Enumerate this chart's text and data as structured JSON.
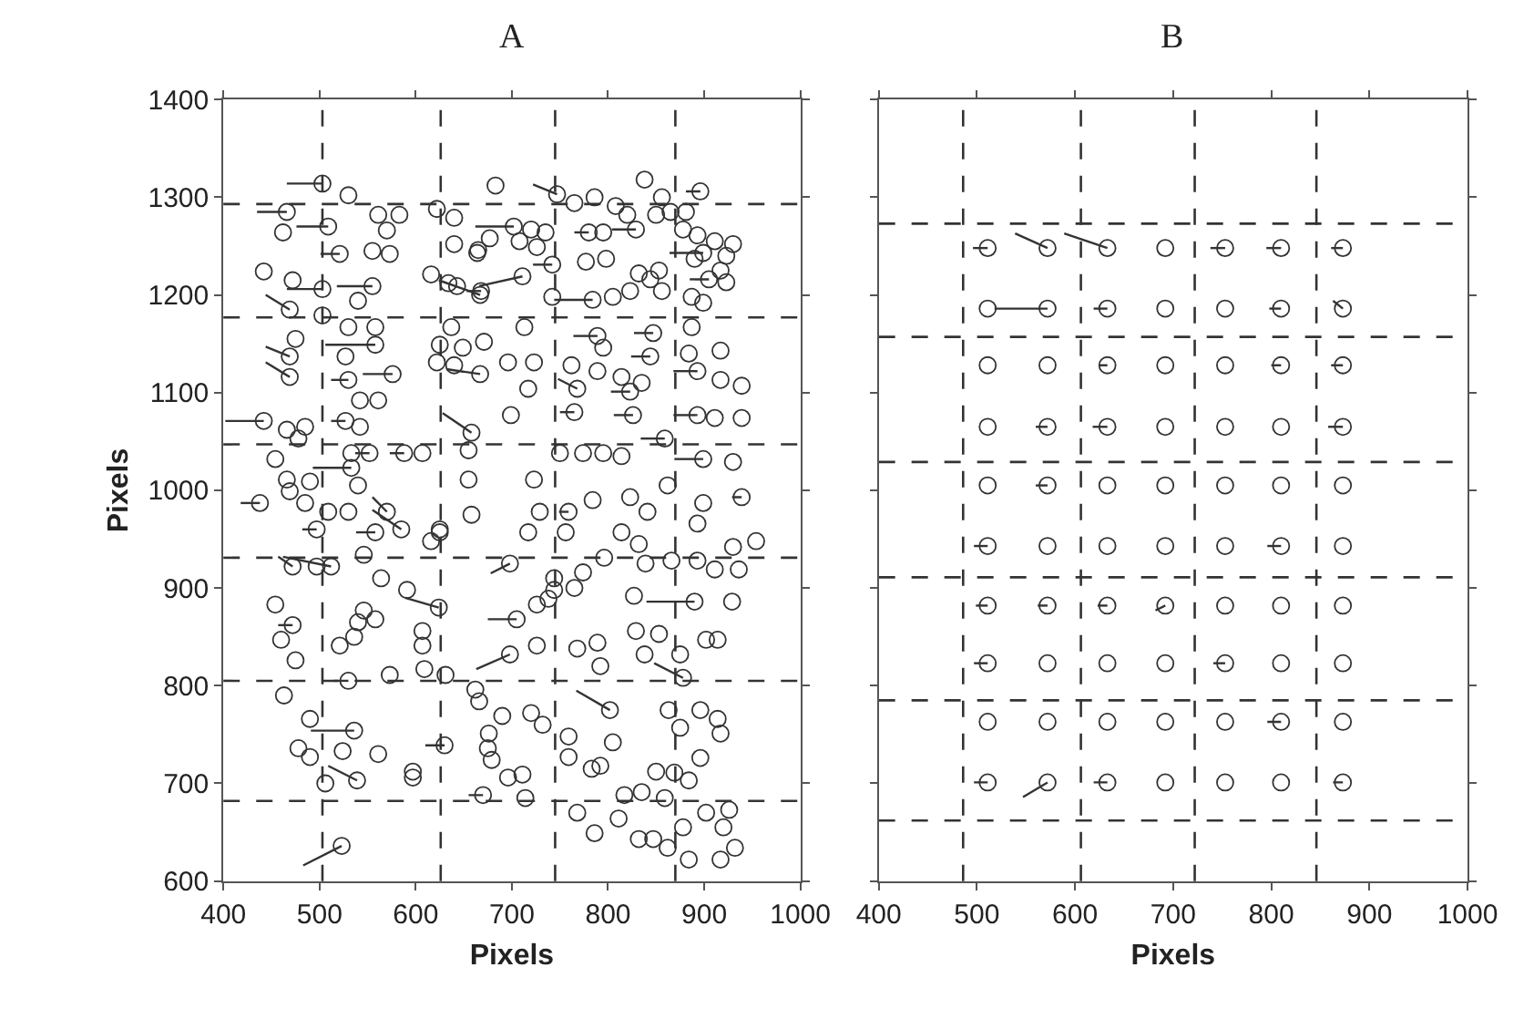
{
  "chart_data": [
    {
      "type": "scatter",
      "title": "A",
      "xlabel": "Pixels",
      "ylabel": "Pixels",
      "xlim": [
        400,
        1000
      ],
      "ylim": [
        600,
        1400
      ],
      "xticks": [
        400,
        500,
        600,
        700,
        800,
        900,
        1000
      ],
      "yticks": [
        600,
        700,
        800,
        900,
        1000,
        1100,
        1200,
        1300,
        1400
      ],
      "grid": false,
      "marker": "circle",
      "ref_lines": [
        {
          "axis": "x",
          "value": 503,
          "color": "#333333",
          "line_style": "dashed"
        },
        {
          "axis": "x",
          "value": 626,
          "color": "#333333",
          "line_style": "dashed"
        },
        {
          "axis": "x",
          "value": 745,
          "color": "#333333",
          "line_style": "dashed"
        },
        {
          "axis": "x",
          "value": 870,
          "color": "#333333",
          "line_style": "dashed"
        },
        {
          "axis": "y",
          "value": 1293,
          "color": "#333333",
          "line_style": "dashed"
        },
        {
          "axis": "y",
          "value": 1177,
          "color": "#333333",
          "line_style": "dashed"
        },
        {
          "axis": "y",
          "value": 1047,
          "color": "#333333",
          "line_style": "dashed"
        },
        {
          "axis": "y",
          "value": 931,
          "color": "#333333",
          "line_style": "dashed"
        },
        {
          "axis": "y",
          "value": 805,
          "color": "#333333",
          "line_style": "dashed"
        },
        {
          "axis": "y",
          "value": 682,
          "color": "#333333",
          "line_style": "dashed"
        }
      ],
      "series": [
        {
          "type": "scatter",
          "color": "#333333",
          "x": [
            503,
            530,
            466,
            462,
            509,
            561,
            583,
            570,
            521,
            555,
            573,
            442,
            472,
            503,
            555,
            540,
            469,
            503,
            530,
            558,
            475,
            558,
            527,
            469,
            469,
            530,
            576,
            542,
            561,
            442,
            466,
            485,
            527,
            542,
            454,
            478,
            533,
            533,
            552,
            588,
            607,
            466,
            490,
            540,
            438,
            469,
            485,
            509,
            530,
            570,
            585,
            558,
            497,
            625,
            616,
            622,
            640,
            640,
            664,
            616,
            634,
            643,
            667,
            637,
            625,
            649,
            622,
            640,
            667,
            658,
            655,
            655,
            658,
            625,
            683,
            747,
            765,
            786,
            808,
            838,
            856,
            896,
            820,
            850,
            865,
            881,
            702,
            720,
            735,
            677,
            665,
            708,
            726,
            780,
            795,
            829,
            878,
            893,
            911,
            930,
            899,
            923,
            777,
            798,
            890,
            917,
            711,
            742,
            832,
            853,
            844,
            905,
            923,
            668,
            742,
            784,
            805,
            823,
            856,
            887,
            899,
            713,
            789,
            847,
            887,
            795,
            844,
            884,
            917,
            671,
            696,
            723,
            762,
            789,
            814,
            835,
            717,
            768,
            823,
            893,
            917,
            939,
            699,
            765,
            826,
            893,
            911,
            939,
            859,
            750,
            774,
            795,
            814,
            899,
            930,
            723,
            862,
            823,
            841,
            784,
            899,
            939,
            729,
            759,
            756,
            814,
            832,
            893,
            954,
            930,
            717,
            472,
            497,
            512,
            546,
            564,
            591,
            624,
            454,
            472,
            460,
            475,
            546,
            540,
            558,
            536,
            521,
            607,
            607,
            530,
            573,
            609,
            631,
            662,
            463,
            490,
            536,
            478,
            490,
            524,
            561,
            539,
            506,
            597,
            597,
            630,
            676,
            679,
            670,
            523,
            698,
            744,
            744,
            765,
            774,
            726,
            705,
            738,
            796,
            839,
            866,
            893,
            911,
            936,
            827,
            890,
            929,
            698,
            726,
            768,
            789,
            792,
            829,
            838,
            853,
            875,
            878,
            902,
            914,
            666,
            690,
            720,
            732,
            759,
            802,
            805,
            863,
            875,
            896,
            914,
            917,
            896,
            869,
            675,
            696,
            711,
            714,
            759,
            783,
            792,
            817,
            835,
            850,
            859,
            884,
            768,
            786,
            811,
            832,
            847,
            862,
            878,
            884,
            917,
            920,
            932,
            902,
            926
          ],
          "values": [
            1314,
            1302,
            1285,
            1264,
            1270,
            1282,
            1282,
            1266,
            1242,
            1245,
            1242,
            1224,
            1215,
            1206,
            1209,
            1194,
            1185,
            1179,
            1167,
            1167,
            1155,
            1149,
            1137,
            1137,
            1116,
            1113,
            1119,
            1092,
            1092,
            1071,
            1062,
            1065,
            1071,
            1065,
            1032,
            1053,
            1038,
            1023,
            1038,
            1038,
            1038,
            1011,
            1009,
            1005,
            987,
            999,
            987,
            978,
            978,
            978,
            960,
            957,
            960,
            960,
            948,
            1288,
            1279,
            1252,
            1243,
            1221,
            1212,
            1209,
            1200,
            1167,
            1149,
            1146,
            1131,
            1128,
            1119,
            1059,
            1041,
            1011,
            975,
            957,
            1312,
            1303,
            1294,
            1300,
            1291,
            1318,
            1300,
            1306,
            1282,
            1282,
            1285,
            1285,
            1270,
            1267,
            1264,
            1258,
            1246,
            1255,
            1249,
            1264,
            1264,
            1267,
            1267,
            1261,
            1255,
            1252,
            1243,
            1240,
            1234,
            1237,
            1237,
            1225,
            1219,
            1231,
            1222,
            1225,
            1216,
            1216,
            1213,
            1204,
            1198,
            1195,
            1198,
            1204,
            1204,
            1198,
            1192,
            1167,
            1158,
            1161,
            1167,
            1146,
            1137,
            1140,
            1143,
            1152,
            1131,
            1131,
            1128,
            1122,
            1116,
            1110,
            1104,
            1104,
            1101,
            1122,
            1113,
            1107,
            1077,
            1080,
            1077,
            1077,
            1074,
            1074,
            1053,
            1038,
            1038,
            1038,
            1035,
            1032,
            1029,
            1011,
            1005,
            993,
            978,
            990,
            987,
            993,
            978,
            978,
            957,
            957,
            945,
            966,
            948,
            942,
            957,
            922,
            922,
            922,
            934,
            910,
            898,
            880,
            883,
            862,
            847,
            826,
            877,
            865,
            868,
            850,
            841,
            856,
            841,
            805,
            811,
            817,
            811,
            796,
            790,
            766,
            754,
            736,
            727,
            733,
            730,
            703,
            700,
            712,
            706,
            739,
            751,
            724,
            688,
            636,
            925,
            910,
            898,
            900,
            916,
            883,
            868,
            889,
            931,
            925,
            928,
            928,
            919,
            919,
            892,
            886,
            886,
            832,
            841,
            838,
            844,
            820,
            856,
            832,
            853,
            832,
            808,
            847,
            847,
            784,
            769,
            772,
            760,
            748,
            775,
            742,
            775,
            757,
            775,
            766,
            751,
            726,
            711,
            736,
            706,
            709,
            685,
            727,
            715,
            718,
            688,
            691,
            712,
            685,
            703,
            670,
            649,
            664,
            643,
            643,
            634,
            655,
            622,
            622,
            655,
            634,
            670,
            673
          ]
        },
        {
          "type": "line",
          "color": "#333333",
          "marker": "none",
          "x": [
            503,
            466
          ],
          "values": [
            1314,
            1314
          ]
        },
        {
          "type": "line",
          "color": "#333333",
          "marker": "none",
          "x": [
            466,
            435
          ],
          "values": [
            1285,
            1285
          ]
        },
        {
          "type": "line",
          "color": "#333333",
          "marker": "none",
          "x": [
            509,
            476
          ],
          "values": [
            1270,
            1270
          ]
        },
        {
          "type": "line",
          "color": "#333333",
          "marker": "none",
          "x": [
            521,
            501
          ],
          "values": [
            1242,
            1242
          ]
        },
        {
          "type": "line",
          "color": "#333333",
          "marker": "none",
          "x": [
            503,
            466
          ],
          "values": [
            1206,
            1206
          ]
        },
        {
          "type": "line",
          "color": "#333333",
          "marker": "none",
          "x": [
            555,
            518
          ],
          "values": [
            1209,
            1209
          ]
        },
        {
          "type": "line",
          "color": "#333333",
          "marker": "none",
          "x": [
            469,
            444
          ],
          "values": [
            1185,
            1200
          ]
        },
        {
          "type": "line",
          "color": "#333333",
          "marker": "none",
          "x": [
            558,
            506
          ],
          "values": [
            1149,
            1149
          ]
        },
        {
          "type": "line",
          "color": "#333333",
          "marker": "none",
          "x": [
            469,
            444
          ],
          "values": [
            1137,
            1147
          ]
        },
        {
          "type": "line",
          "color": "#333333",
          "marker": "none",
          "x": [
            469,
            444
          ],
          "values": [
            1116,
            1131
          ]
        },
        {
          "type": "line",
          "color": "#333333",
          "marker": "none",
          "x": [
            530,
            512
          ],
          "values": [
            1113,
            1113
          ]
        },
        {
          "type": "line",
          "color": "#333333",
          "marker": "none",
          "x": [
            576,
            545
          ],
          "values": [
            1119,
            1119
          ]
        },
        {
          "type": "line",
          "color": "#333333",
          "marker": "none",
          "x": [
            442,
            402
          ],
          "values": [
            1071,
            1071
          ]
        },
        {
          "type": "line",
          "color": "#333333",
          "marker": "none",
          "x": [
            527,
            512
          ],
          "values": [
            1071,
            1071
          ]
        },
        {
          "type": "line",
          "color": "#333333",
          "marker": "none",
          "x": [
            533,
            493
          ],
          "values": [
            1023,
            1023
          ]
        },
        {
          "type": "line",
          "color": "#333333",
          "marker": "none",
          "x": [
            552,
            537
          ],
          "values": [
            1038,
            1038
          ]
        },
        {
          "type": "line",
          "color": "#333333",
          "marker": "none",
          "x": [
            588,
            573
          ],
          "values": [
            1038,
            1038
          ]
        },
        {
          "type": "line",
          "color": "#333333",
          "marker": "none",
          "x": [
            438,
            418
          ],
          "values": [
            987,
            987
          ]
        },
        {
          "type": "line",
          "color": "#333333",
          "marker": "none",
          "x": [
            570,
            555
          ],
          "values": [
            978,
            993
          ]
        },
        {
          "type": "line",
          "color": "#333333",
          "marker": "none",
          "x": [
            585,
            555
          ],
          "values": [
            960,
            980
          ]
        },
        {
          "type": "line",
          "color": "#333333",
          "marker": "none",
          "x": [
            558,
            538
          ],
          "values": [
            957,
            957
          ]
        },
        {
          "type": "line",
          "color": "#333333",
          "marker": "none",
          "x": [
            497,
            482
          ],
          "values": [
            960,
            960
          ]
        },
        {
          "type": "line",
          "color": "#333333",
          "marker": "none",
          "x": [
            667,
            624
          ],
          "values": [
            1200,
            1215
          ]
        },
        {
          "type": "line",
          "color": "#333333",
          "marker": "none",
          "x": [
            667,
            632
          ],
          "values": [
            1119,
            1124
          ]
        },
        {
          "type": "line",
          "color": "#333333",
          "marker": "none",
          "x": [
            658,
            628
          ],
          "values": [
            1059,
            1079
          ]
        },
        {
          "type": "line",
          "color": "#333333",
          "marker": "none",
          "x": [
            747,
            722
          ],
          "values": [
            1303,
            1313
          ]
        },
        {
          "type": "line",
          "color": "#333333",
          "marker": "none",
          "x": [
            896,
            881
          ],
          "values": [
            1306,
            1306
          ]
        },
        {
          "type": "line",
          "color": "#333333",
          "marker": "none",
          "x": [
            702,
            662
          ],
          "values": [
            1270,
            1270
          ]
        },
        {
          "type": "line",
          "color": "#333333",
          "marker": "none",
          "x": [
            780,
            765
          ],
          "values": [
            1264,
            1264
          ]
        },
        {
          "type": "line",
          "color": "#333333",
          "marker": "none",
          "x": [
            829,
            804
          ],
          "values": [
            1267,
            1267
          ]
        },
        {
          "type": "line",
          "color": "#333333",
          "marker": "none",
          "x": [
            899,
            864
          ],
          "values": [
            1243,
            1243
          ]
        },
        {
          "type": "line",
          "color": "#333333",
          "marker": "none",
          "x": [
            711,
            666
          ],
          "values": [
            1219,
            1209
          ]
        },
        {
          "type": "line",
          "color": "#333333",
          "marker": "none",
          "x": [
            742,
            722
          ],
          "values": [
            1231,
            1231
          ]
        },
        {
          "type": "line",
          "color": "#333333",
          "marker": "none",
          "x": [
            905,
            885
          ],
          "values": [
            1216,
            1216
          ]
        },
        {
          "type": "line",
          "color": "#333333",
          "marker": "none",
          "x": [
            668,
            653
          ],
          "values": [
            1204,
            1204
          ]
        },
        {
          "type": "line",
          "color": "#333333",
          "marker": "none",
          "x": [
            784,
            744
          ],
          "values": [
            1195,
            1195
          ]
        },
        {
          "type": "line",
          "color": "#333333",
          "marker": "none",
          "x": [
            789,
            764
          ],
          "values": [
            1158,
            1158
          ]
        },
        {
          "type": "line",
          "color": "#333333",
          "marker": "none",
          "x": [
            847,
            827
          ],
          "values": [
            1161,
            1161
          ]
        },
        {
          "type": "line",
          "color": "#333333",
          "marker": "none",
          "x": [
            844,
            824
          ],
          "values": [
            1137,
            1137
          ]
        },
        {
          "type": "line",
          "color": "#333333",
          "marker": "none",
          "x": [
            768,
            748
          ],
          "values": [
            1104,
            1114
          ]
        },
        {
          "type": "line",
          "color": "#333333",
          "marker": "none",
          "x": [
            823,
            803
          ],
          "values": [
            1101,
            1101
          ]
        },
        {
          "type": "line",
          "color": "#333333",
          "marker": "none",
          "x": [
            893,
            868
          ],
          "values": [
            1122,
            1122
          ]
        },
        {
          "type": "line",
          "color": "#333333",
          "marker": "none",
          "x": [
            765,
            750
          ],
          "values": [
            1080,
            1080
          ]
        },
        {
          "type": "line",
          "color": "#333333",
          "marker": "none",
          "x": [
            826,
            806
          ],
          "values": [
            1077,
            1077
          ]
        },
        {
          "type": "line",
          "color": "#333333",
          "marker": "none",
          "x": [
            893,
            868
          ],
          "values": [
            1077,
            1077
          ]
        },
        {
          "type": "line",
          "color": "#333333",
          "marker": "none",
          "x": [
            859,
            834
          ],
          "values": [
            1053,
            1053
          ]
        },
        {
          "type": "line",
          "color": "#333333",
          "marker": "none",
          "x": [
            899,
            869
          ],
          "values": [
            1032,
            1032
          ]
        },
        {
          "type": "line",
          "color": "#333333",
          "marker": "none",
          "x": [
            939,
            929
          ],
          "values": [
            993,
            993
          ]
        },
        {
          "type": "line",
          "color": "#333333",
          "marker": "none",
          "x": [
            759,
            749
          ],
          "values": [
            978,
            978
          ]
        },
        {
          "type": "line",
          "color": "#333333",
          "marker": "none",
          "x": [
            472,
            457
          ],
          "values": [
            922,
            932
          ]
        },
        {
          "type": "line",
          "color": "#333333",
          "marker": "none",
          "x": [
            512,
            462
          ],
          "values": [
            922,
            932
          ]
        },
        {
          "type": "line",
          "color": "#333333",
          "marker": "none",
          "x": [
            624,
            589
          ],
          "values": [
            880,
            890
          ]
        },
        {
          "type": "line",
          "color": "#333333",
          "marker": "none",
          "x": [
            472,
            457
          ],
          "values": [
            862,
            862
          ]
        },
        {
          "type": "line",
          "color": "#333333",
          "marker": "none",
          "x": [
            530,
            515
          ],
          "values": [
            805,
            805
          ]
        },
        {
          "type": "line",
          "color": "#333333",
          "marker": "none",
          "x": [
            536,
            491
          ],
          "values": [
            754,
            754
          ]
        },
        {
          "type": "line",
          "color": "#333333",
          "marker": "none",
          "x": [
            539,
            509
          ],
          "values": [
            703,
            718
          ]
        },
        {
          "type": "line",
          "color": "#333333",
          "marker": "none",
          "x": [
            630,
            610
          ],
          "values": [
            739,
            739
          ]
        },
        {
          "type": "line",
          "color": "#333333",
          "marker": "none",
          "x": [
            670,
            655
          ],
          "values": [
            688,
            688
          ]
        },
        {
          "type": "line",
          "color": "#333333",
          "marker": "none",
          "x": [
            523,
            483
          ],
          "values": [
            636,
            616
          ]
        },
        {
          "type": "line",
          "color": "#333333",
          "marker": "none",
          "x": [
            698,
            678
          ],
          "values": [
            925,
            915
          ]
        },
        {
          "type": "line",
          "color": "#333333",
          "marker": "none",
          "x": [
            705,
            675
          ],
          "values": [
            868,
            868
          ]
        },
        {
          "type": "line",
          "color": "#333333",
          "marker": "none",
          "x": [
            890,
            840
          ],
          "values": [
            886,
            886
          ]
        },
        {
          "type": "line",
          "color": "#333333",
          "marker": "none",
          "x": [
            698,
            663
          ],
          "values": [
            832,
            817
          ]
        },
        {
          "type": "line",
          "color": "#333333",
          "marker": "none",
          "x": [
            878,
            848
          ],
          "values": [
            808,
            823
          ]
        },
        {
          "type": "line",
          "color": "#333333",
          "marker": "none",
          "x": [
            802,
            767
          ],
          "values": [
            775,
            795
          ]
        }
      ]
    },
    {
      "type": "scatter",
      "title": "B",
      "xlabel": "Pixels",
      "xlim": [
        400,
        1000
      ],
      "ylim": [
        600,
        1400
      ],
      "xticks": [
        400,
        500,
        600,
        700,
        800,
        900,
        1000
      ],
      "yticks": [
        600,
        700,
        800,
        900,
        1000,
        1100,
        1200,
        1300,
        1400
      ],
      "tick_labels": "x",
      "grid": false,
      "marker": "circle",
      "ref_lines": [
        {
          "axis": "x",
          "value": 486,
          "color": "#333333",
          "line_style": "dashed"
        },
        {
          "axis": "x",
          "value": 606,
          "color": "#333333",
          "line_style": "dashed"
        },
        {
          "axis": "x",
          "value": 722,
          "color": "#333333",
          "line_style": "dashed"
        },
        {
          "axis": "x",
          "value": 846,
          "color": "#333333",
          "line_style": "dashed"
        },
        {
          "axis": "y",
          "value": 1273,
          "color": "#333333",
          "line_style": "dashed"
        },
        {
          "axis": "y",
          "value": 1157,
          "color": "#333333",
          "line_style": "dashed"
        },
        {
          "axis": "y",
          "value": 1029,
          "color": "#333333",
          "line_style": "dashed"
        },
        {
          "axis": "y",
          "value": 911,
          "color": "#333333",
          "line_style": "dashed"
        },
        {
          "axis": "y",
          "value": 785,
          "color": "#333333",
          "line_style": "dashed"
        },
        {
          "axis": "y",
          "value": 662,
          "color": "#333333",
          "line_style": "dashed"
        }
      ],
      "series": [
        {
          "type": "scatter",
          "color": "#333333",
          "x": [
            511,
            572,
            633,
            692,
            753,
            810,
            873,
            511,
            572,
            633,
            692,
            753,
            810,
            873,
            511,
            572,
            633,
            692,
            753,
            810,
            873,
            511,
            572,
            633,
            692,
            753,
            810,
            873,
            511,
            572,
            633,
            692,
            753,
            810,
            873,
            511,
            572,
            633,
            692,
            753,
            810,
            873,
            511,
            572,
            633,
            692,
            753,
            810,
            873,
            511,
            572,
            633,
            692,
            753,
            810,
            873,
            511,
            572,
            633,
            692,
            753,
            810,
            873,
            511,
            572,
            633,
            692,
            753,
            810,
            873
          ],
          "values": [
            1248,
            1248,
            1248,
            1248,
            1248,
            1248,
            1248,
            1186,
            1186,
            1186,
            1186,
            1186,
            1186,
            1186,
            1128,
            1128,
            1128,
            1128,
            1128,
            1128,
            1128,
            1065,
            1065,
            1065,
            1065,
            1065,
            1065,
            1065,
            1005,
            1005,
            1005,
            1005,
            1005,
            1005,
            1005,
            943,
            943,
            943,
            943,
            943,
            943,
            943,
            882,
            882,
            882,
            882,
            882,
            882,
            882,
            823,
            823,
            823,
            823,
            823,
            823,
            823,
            763,
            763,
            763,
            763,
            763,
            763,
            763,
            701,
            701,
            701,
            701,
            701,
            701,
            701
          ]
        },
        {
          "type": "line",
          "color": "#333333",
          "marker": "none",
          "x": [
            572,
            539
          ],
          "values": [
            1248,
            1263
          ]
        },
        {
          "type": "line",
          "color": "#333333",
          "marker": "none",
          "x": [
            633,
            589
          ],
          "values": [
            1248,
            1263
          ]
        },
        {
          "type": "line",
          "color": "#333333",
          "marker": "none",
          "x": [
            511,
            496
          ],
          "values": [
            1248,
            1248
          ]
        },
        {
          "type": "line",
          "color": "#333333",
          "marker": "none",
          "x": [
            753,
            738
          ],
          "values": [
            1248,
            1248
          ]
        },
        {
          "type": "line",
          "color": "#333333",
          "marker": "none",
          "x": [
            810,
            795
          ],
          "values": [
            1248,
            1248
          ]
        },
        {
          "type": "line",
          "color": "#333333",
          "marker": "none",
          "x": [
            873,
            861
          ],
          "values": [
            1248,
            1248
          ]
        },
        {
          "type": "line",
          "color": "#333333",
          "marker": "none",
          "x": [
            572,
            518
          ],
          "values": [
            1186,
            1186
          ]
        },
        {
          "type": "line",
          "color": "#333333",
          "marker": "none",
          "x": [
            633,
            619
          ],
          "values": [
            1186,
            1186
          ]
        },
        {
          "type": "line",
          "color": "#333333",
          "marker": "none",
          "x": [
            810,
            798
          ],
          "values": [
            1186,
            1186
          ]
        },
        {
          "type": "line",
          "color": "#333333",
          "marker": "none",
          "x": [
            873,
            863
          ],
          "values": [
            1186,
            1194
          ]
        },
        {
          "type": "line",
          "color": "#333333",
          "marker": "none",
          "x": [
            633,
            625
          ],
          "values": [
            1128,
            1128
          ]
        },
        {
          "type": "line",
          "color": "#333333",
          "marker": "none",
          "x": [
            810,
            800
          ],
          "values": [
            1128,
            1128
          ]
        },
        {
          "type": "line",
          "color": "#333333",
          "marker": "none",
          "x": [
            873,
            861
          ],
          "values": [
            1128,
            1128
          ]
        },
        {
          "type": "line",
          "color": "#333333",
          "marker": "none",
          "x": [
            572,
            560
          ],
          "values": [
            1065,
            1065
          ]
        },
        {
          "type": "line",
          "color": "#333333",
          "marker": "none",
          "x": [
            633,
            618
          ],
          "values": [
            1065,
            1065
          ]
        },
        {
          "type": "line",
          "color": "#333333",
          "marker": "none",
          "x": [
            873,
            858
          ],
          "values": [
            1065,
            1065
          ]
        },
        {
          "type": "line",
          "color": "#333333",
          "marker": "none",
          "x": [
            572,
            560
          ],
          "values": [
            1005,
            1005
          ]
        },
        {
          "type": "line",
          "color": "#333333",
          "marker": "none",
          "x": [
            511,
            497
          ],
          "values": [
            943,
            943
          ]
        },
        {
          "type": "line",
          "color": "#333333",
          "marker": "none",
          "x": [
            810,
            796
          ],
          "values": [
            943,
            943
          ]
        },
        {
          "type": "line",
          "color": "#333333",
          "marker": "none",
          "x": [
            511,
            499
          ],
          "values": [
            882,
            882
          ]
        },
        {
          "type": "line",
          "color": "#333333",
          "marker": "none",
          "x": [
            572,
            562
          ],
          "values": [
            882,
            882
          ]
        },
        {
          "type": "line",
          "color": "#333333",
          "marker": "none",
          "x": [
            633,
            623
          ],
          "values": [
            882,
            882
          ]
        },
        {
          "type": "line",
          "color": "#333333",
          "marker": "none",
          "x": [
            692,
            682
          ],
          "values": [
            882,
            877
          ]
        },
        {
          "type": "line",
          "color": "#333333",
          "marker": "none",
          "x": [
            511,
            497
          ],
          "values": [
            823,
            823
          ]
        },
        {
          "type": "line",
          "color": "#333333",
          "marker": "none",
          "x": [
            753,
            741
          ],
          "values": [
            823,
            823
          ]
        },
        {
          "type": "line",
          "color": "#333333",
          "marker": "none",
          "x": [
            810,
            796
          ],
          "values": [
            763,
            763
          ]
        },
        {
          "type": "line",
          "color": "#333333",
          "marker": "none",
          "x": [
            511,
            497
          ],
          "values": [
            701,
            701
          ]
        },
        {
          "type": "line",
          "color": "#333333",
          "marker": "none",
          "x": [
            572,
            547
          ],
          "values": [
            701,
            686
          ]
        },
        {
          "type": "line",
          "color": "#333333",
          "marker": "none",
          "x": [
            633,
            619
          ],
          "values": [
            701,
            701
          ]
        },
        {
          "type": "line",
          "color": "#333333",
          "marker": "none",
          "x": [
            873,
            863
          ],
          "values": [
            701,
            701
          ]
        }
      ]
    }
  ]
}
